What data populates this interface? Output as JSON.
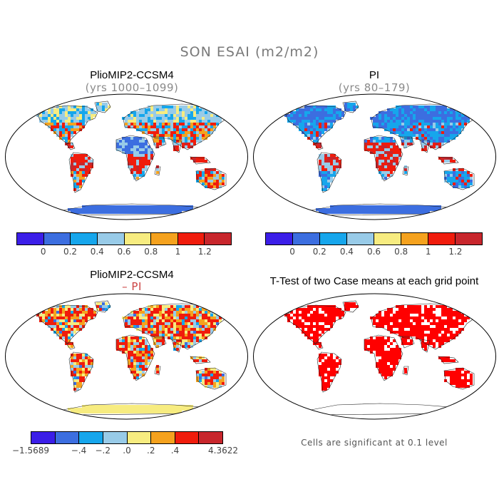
{
  "figure": {
    "title": "SON ESAI (m2/m2)"
  },
  "panels": {
    "top_left": {
      "title": "PlioMIP2-CCSM4",
      "subtitle": "(yrs 1000–1099)"
    },
    "top_right": {
      "title": "PI",
      "subtitle": "(yrs 80–179)"
    },
    "bottom_left": {
      "title": "PlioMIP2-CCSM4",
      "subtitle": "– PI"
    },
    "bottom_right": {
      "title": "T-Test of two Case means at each grid point",
      "note": "Cells are significant at 0.1 level"
    }
  },
  "colorbars": {
    "absolute": {
      "colors": [
        "#3b1ee8",
        "#3c6ee0",
        "#16a6ec",
        "#98cbe8",
        "#f7ec80",
        "#f5a21e",
        "#f01c0c",
        "#c8262c"
      ],
      "ticks": [
        "0",
        "0.2",
        "0.4",
        "0.6",
        "0.8",
        "1",
        "1.2"
      ]
    },
    "difference": {
      "colors": [
        "#3b1ee8",
        "#3c6ee0",
        "#16a6ec",
        "#98cbe8",
        "#f7ec80",
        "#f5a21e",
        "#f01c0c",
        "#c8262c"
      ],
      "ticks": [
        "−1.5689",
        "−.4",
        "−.2",
        ".0",
        ".2",
        ".4",
        "4.3622"
      ]
    }
  },
  "colors": {
    "ttest_significant": "#ff0000"
  }
}
